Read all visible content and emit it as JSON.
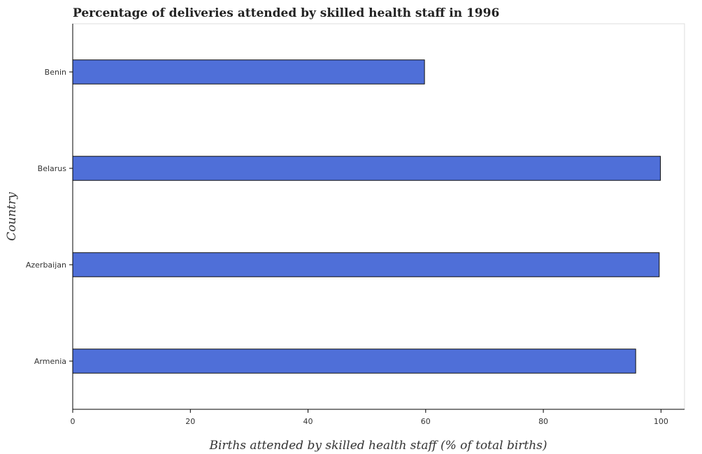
{
  "chart_data": {
    "type": "bar",
    "orientation": "horizontal",
    "title": "Percentage of deliveries attended by skilled health staff in 1996",
    "xlabel": "Births attended by skilled health staff (% of total births)",
    "ylabel": "Country",
    "categories": [
      "Armenia",
      "Azerbaijan",
      "Belarus",
      "Benin"
    ],
    "values": [
      95.7,
      99.7,
      99.9,
      59.8
    ],
    "xlim": [
      0,
      104
    ],
    "xticks": [
      0,
      20,
      40,
      60,
      80,
      100
    ],
    "grid": false,
    "legend": "none",
    "bar_color": "#4f6fd8"
  }
}
